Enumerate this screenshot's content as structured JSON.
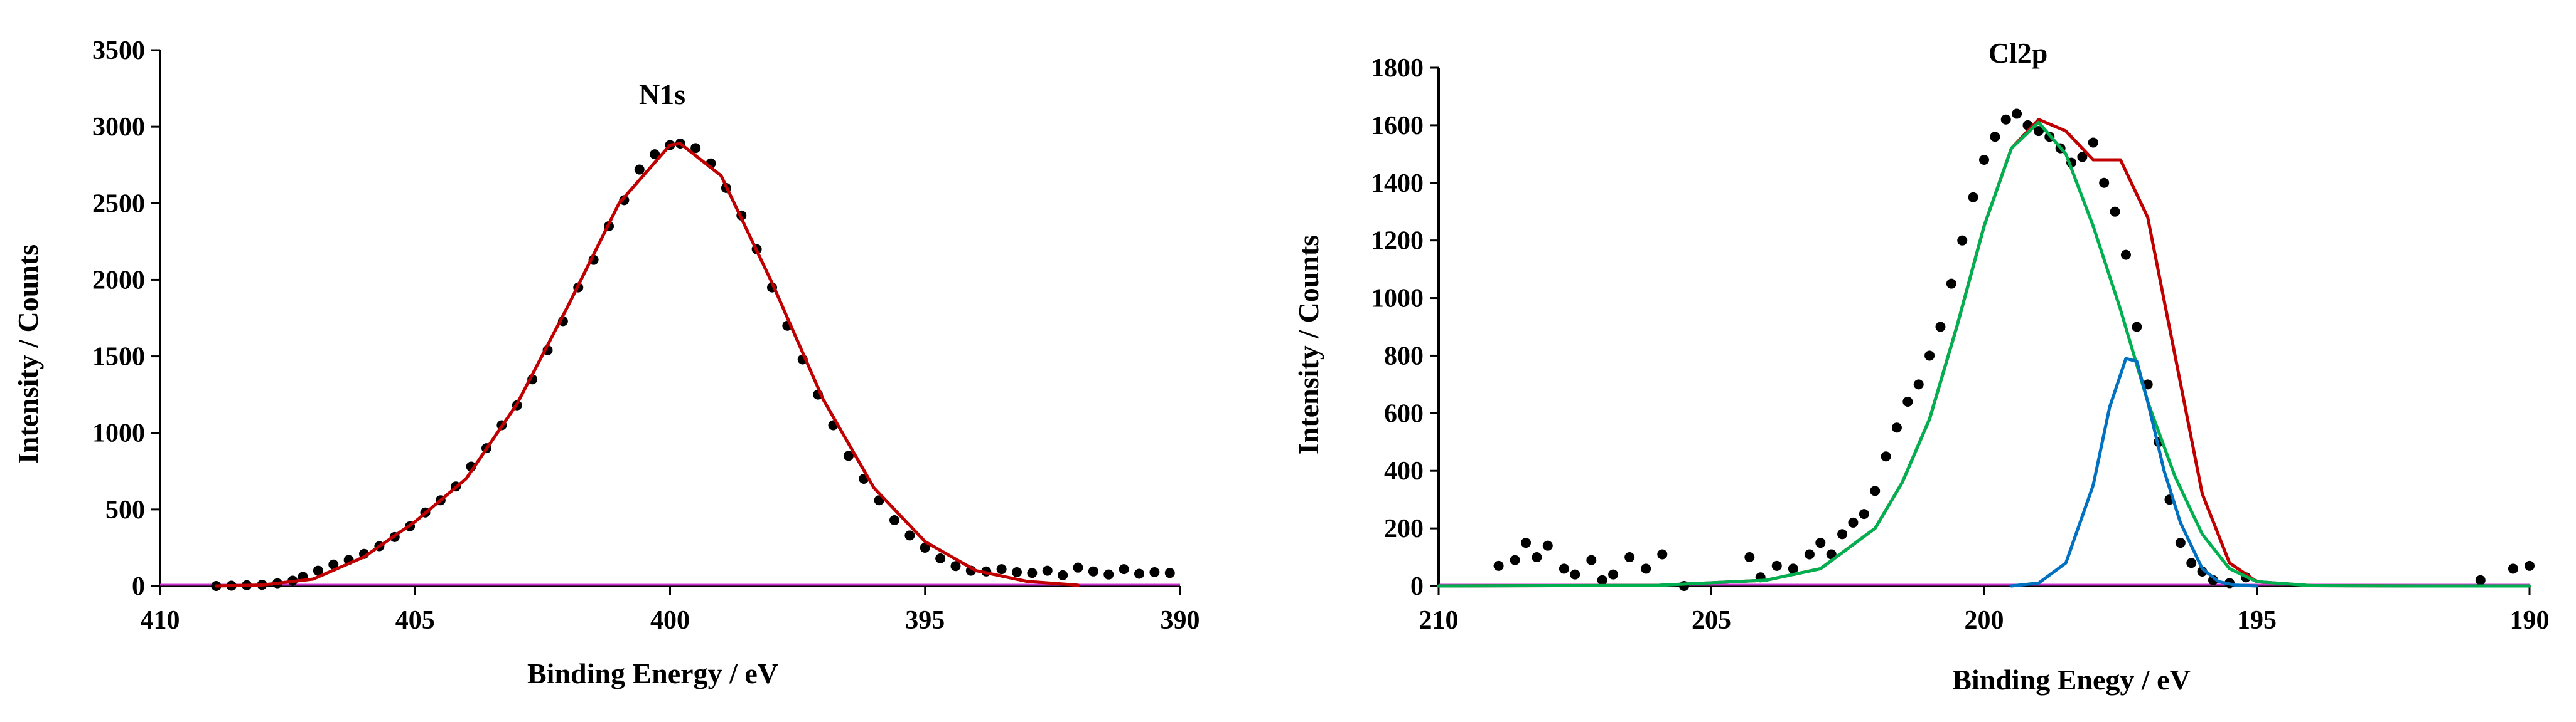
{
  "chart_data": [
    {
      "type": "scatter",
      "title": "N1s",
      "xlabel": "Binding Energy / eV",
      "ylabel": "Intensity / Counts",
      "xlim": [
        410,
        390
      ],
      "ylim": [
        0,
        3500
      ],
      "x_reversed": true,
      "xticks": [
        410,
        405,
        400,
        395,
        390
      ],
      "yticks": [
        0,
        500,
        1000,
        1500,
        2000,
        2500,
        3000,
        3500
      ],
      "grid": false,
      "colors": {
        "points": "#000000",
        "fit": "#c00000",
        "baseline": "#cc33cc"
      },
      "series": [
        {
          "kind": "points",
          "x": [
            408.9,
            408.6,
            408.3,
            408.0,
            407.7,
            407.4,
            407.2,
            406.9,
            406.6,
            406.3,
            406.0,
            405.7,
            405.4,
            405.1,
            404.8,
            404.5,
            404.2,
            403.9,
            403.6,
            403.3,
            403.0,
            402.7,
            402.4,
            402.1,
            401.8,
            401.5,
            401.2,
            400.9,
            400.6,
            400.3,
            400.0,
            399.8,
            399.5,
            399.2,
            398.9,
            398.6,
            398.3,
            398.0,
            397.7,
            397.4,
            397.1,
            396.8,
            396.5,
            396.2,
            395.9,
            395.6,
            395.3,
            395.0,
            394.7,
            394.4,
            394.1,
            393.8,
            393.5,
            393.2,
            392.9,
            392.6,
            392.3,
            392.0,
            391.7,
            391.4,
            391.1,
            390.8,
            390.5,
            390.2
          ],
          "y": [
            0,
            2,
            5,
            8,
            18,
            35,
            60,
            100,
            140,
            170,
            210,
            260,
            320,
            390,
            480,
            560,
            650,
            780,
            900,
            1050,
            1180,
            1350,
            1540,
            1730,
            1950,
            2130,
            2350,
            2520,
            2720,
            2820,
            2880,
            2890,
            2860,
            2760,
            2600,
            2420,
            2200,
            1950,
            1700,
            1480,
            1250,
            1050,
            850,
            700,
            560,
            430,
            330,
            250,
            180,
            130,
            100,
            95,
            110,
            90,
            85,
            100,
            70,
            120,
            95,
            75,
            110,
            80,
            90,
            85
          ]
        },
        {
          "kind": "fit",
          "x": [
            408.9,
            408.0,
            407.0,
            406.0,
            405.0,
            404.0,
            403.0,
            402.0,
            401.0,
            400.0,
            399.8,
            399.0,
            398.0,
            397.0,
            396.0,
            395.0,
            394.0,
            393.0,
            392.0
          ],
          "y": [
            0,
            6,
            45,
            190,
            420,
            700,
            1190,
            1830,
            2500,
            2880,
            2890,
            2680,
            1980,
            1220,
            640,
            290,
            100,
            30,
            5
          ]
        }
      ]
    },
    {
      "type": "line",
      "title": "Cl2p",
      "xlabel": "Binding Enegy / eV",
      "ylabel": "Intensity /  Counts",
      "xlim": [
        210,
        190
      ],
      "ylim": [
        0,
        1800
      ],
      "x_reversed": true,
      "xticks": [
        210,
        205,
        200,
        195,
        190
      ],
      "yticks": [
        0,
        200,
        400,
        600,
        800,
        1000,
        1200,
        1400,
        1600,
        1800
      ],
      "grid": false,
      "colors": {
        "points": "#000000",
        "envelope": "#c00000",
        "component_1": "#00b050",
        "component_2": "#0070c0",
        "baseline": "#cc33cc"
      },
      "series": [
        {
          "kind": "points",
          "x": [
            208.9,
            208.6,
            208.4,
            208.2,
            208.0,
            207.7,
            207.5,
            207.2,
            207.0,
            206.8,
            206.5,
            206.2,
            205.9,
            205.5,
            204.3,
            204.1,
            203.8,
            203.5,
            203.2,
            203.0,
            202.8,
            202.6,
            202.4,
            202.2,
            202.0,
            201.8,
            201.6,
            201.4,
            201.2,
            201.0,
            200.8,
            200.6,
            200.4,
            200.2,
            200.0,
            199.8,
            199.6,
            199.4,
            199.2,
            199.0,
            198.8,
            198.6,
            198.4,
            198.2,
            198.0,
            197.8,
            197.6,
            197.4,
            197.2,
            197.0,
            196.8,
            196.6,
            196.4,
            196.2,
            196.0,
            195.8,
            195.5,
            195.2,
            190.9,
            190.3,
            190.0
          ],
          "y": [
            70,
            90,
            150,
            100,
            140,
            60,
            40,
            90,
            20,
            40,
            100,
            60,
            110,
            0,
            100,
            30,
            70,
            60,
            110,
            150,
            110,
            180,
            220,
            250,
            330,
            450,
            550,
            640,
            700,
            800,
            900,
            1050,
            1200,
            1350,
            1480,
            1560,
            1620,
            1640,
            1600,
            1580,
            1560,
            1520,
            1470,
            1490,
            1540,
            1400,
            1300,
            1150,
            900,
            700,
            500,
            300,
            150,
            80,
            50,
            20,
            10,
            30,
            20,
            60,
            70
          ]
        },
        {
          "kind": "envelope",
          "x": [
            210,
            206,
            204,
            203,
            202,
            201.5,
            201,
            200.5,
            200,
            199.5,
            199,
            198.5,
            198,
            197.5,
            197,
            196.5,
            196,
            195.5,
            195,
            194,
            192,
            190
          ],
          "y": [
            0,
            2,
            20,
            60,
            200,
            360,
            580,
            900,
            1250,
            1520,
            1620,
            1580,
            1480,
            1480,
            1280,
            800,
            320,
            80,
            15,
            1,
            0,
            0
          ]
        },
        {
          "kind": "component_1",
          "x": [
            210,
            206,
            204,
            203,
            202,
            201.5,
            201,
            200.5,
            200,
            199.5,
            199,
            198.5,
            198,
            197.5,
            197,
            196.5,
            196,
            195.5,
            195,
            194,
            192,
            190
          ],
          "y": [
            0,
            2,
            20,
            60,
            200,
            360,
            580,
            900,
            1250,
            1520,
            1610,
            1500,
            1250,
            960,
            640,
            380,
            180,
            60,
            15,
            1,
            0,
            0
          ]
        },
        {
          "kind": "component_2",
          "x": [
            199.5,
            199,
            198.5,
            198,
            197.7,
            197.4,
            197.2,
            197,
            196.7,
            196.4,
            196,
            195.7,
            195.4,
            195
          ],
          "y": [
            0,
            10,
            80,
            350,
            620,
            790,
            780,
            640,
            400,
            220,
            60,
            15,
            3,
            0
          ]
        }
      ]
    }
  ]
}
